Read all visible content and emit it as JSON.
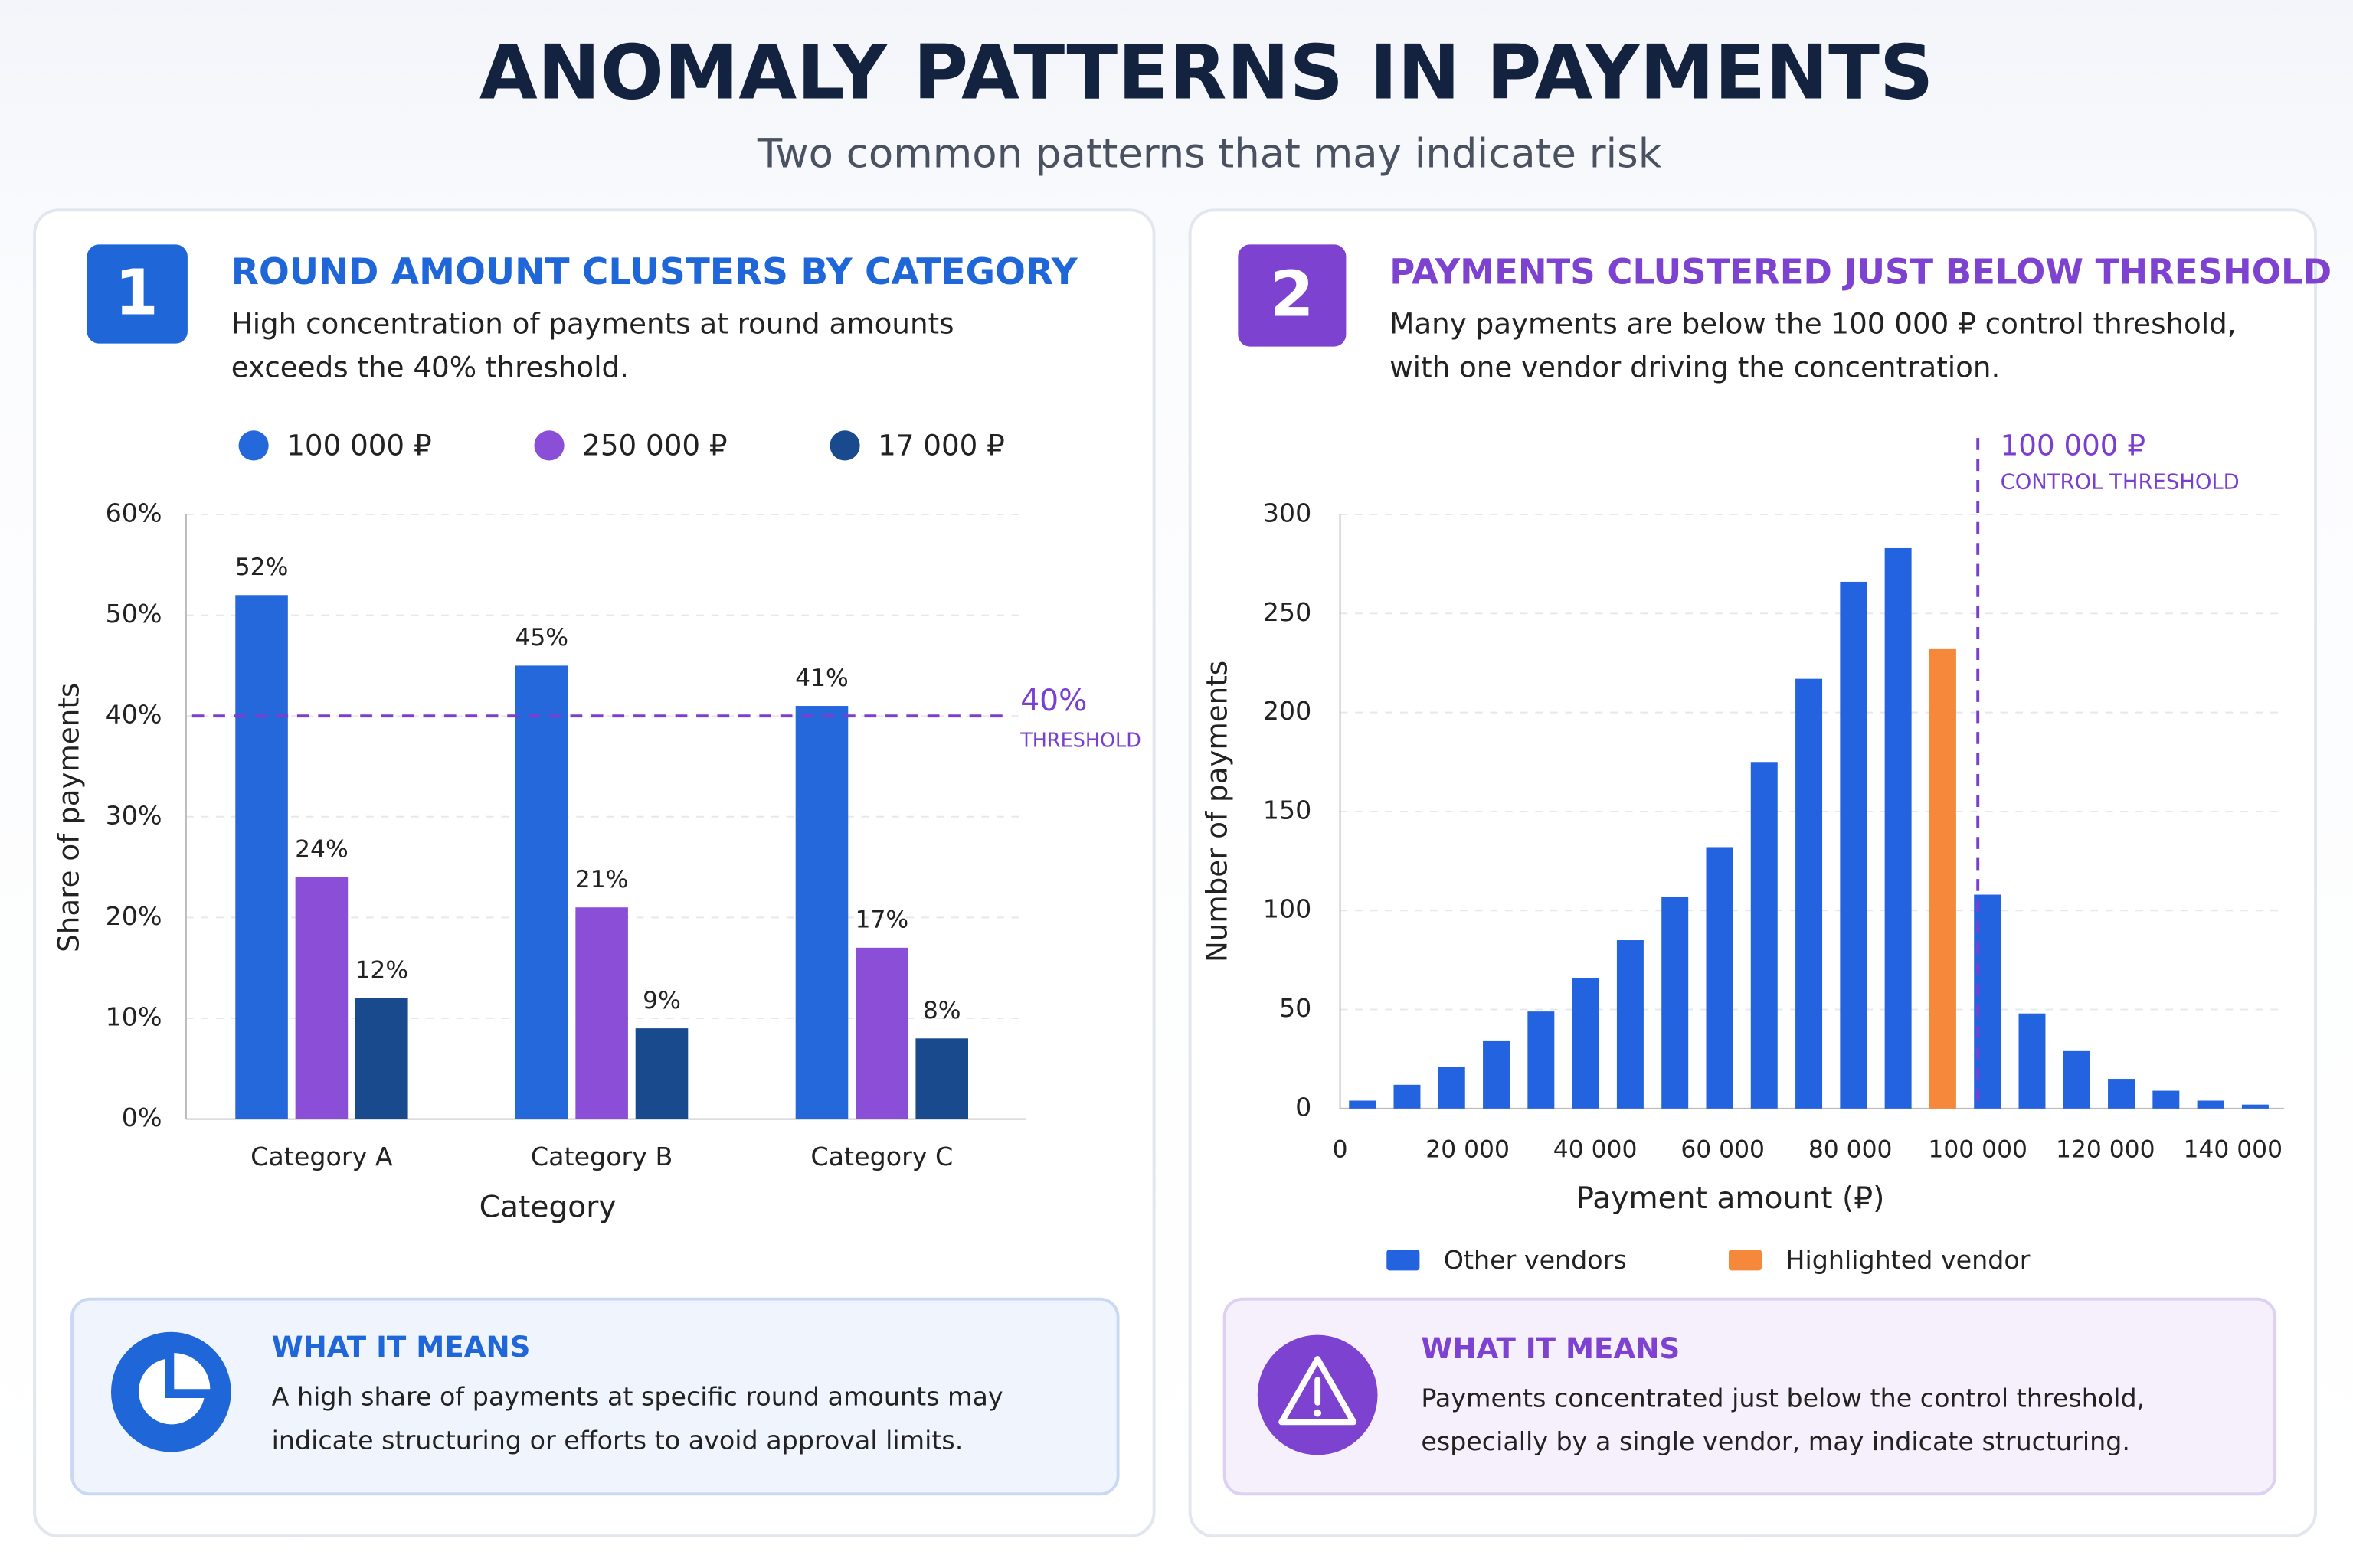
{
  "title": "ANOMALY PATTERNS IN PAYMENTS",
  "subtitle": "Two common patterns that may indicate risk",
  "panels": [
    {
      "number": "1",
      "title": "ROUND AMOUNT CLUSTERS BY CATEGORY",
      "description": [
        "High concentration of payments at round amounts",
        "exceeds the 40% threshold."
      ],
      "note_title": "WHAT IT MEANS",
      "note": [
        "A high share of payments at specific round amounts may",
        "indicate structuring or efforts to avoid approval limits."
      ]
    },
    {
      "number": "2",
      "title": "PAYMENTS CLUSTERED JUST BELOW THRESHOLD",
      "description": [
        "Many payments are below the 100 000 ₽ control threshold,",
        "with one vendor driving the concentration."
      ],
      "note_title": "WHAT IT MEANS",
      "note": [
        "Payments concentrated just below the control threshold,",
        "especially by a single vendor, may indicate structuring."
      ]
    }
  ],
  "chart_data": [
    {
      "type": "bar",
      "xlabel": "Category",
      "ylabel": "Share of payments",
      "categories": [
        "Category A",
        "Category B",
        "Category C"
      ],
      "series": [
        {
          "name": "100 000 ₽",
          "color": "#2468dc",
          "values": [
            52,
            45,
            41
          ],
          "value_labels": [
            "52%",
            "45%",
            "41%"
          ]
        },
        {
          "name": "250 000 ₽",
          "color": "#8a4fd6",
          "values": [
            24,
            21,
            17
          ],
          "value_labels": [
            "24%",
            "21%",
            "17%"
          ]
        },
        {
          "name": "17 000 ₽",
          "color": "#1a4a8e",
          "values": [
            12,
            9,
            8
          ],
          "value_labels": [
            "12%",
            "9%",
            "8%"
          ]
        }
      ],
      "ylim": [
        0,
        60
      ],
      "yticks": [
        {
          "value": 0,
          "label": "0%"
        },
        {
          "value": 10,
          "label": "10%"
        },
        {
          "value": 20,
          "label": "20%"
        },
        {
          "value": 30,
          "label": "30%"
        },
        {
          "value": 40,
          "label": "40%"
        },
        {
          "value": 50,
          "label": "50%"
        },
        {
          "value": 60,
          "label": "60%"
        }
      ],
      "grid": true,
      "threshold": {
        "value": 40,
        "label": "40%",
        "text": "THRESHOLD",
        "color": "#7b3fd0"
      }
    },
    {
      "type": "histogram",
      "xlabel": "Payment amount (₽)",
      "ylabel": "Number of payments",
      "bins": [
        0,
        7000,
        14000,
        21000,
        28000,
        35000,
        42000,
        49000,
        56000,
        63000,
        70000,
        77000,
        84000,
        91000,
        98000,
        105000,
        112000,
        119000,
        126000,
        133000,
        140000,
        147000
      ],
      "series": [
        {
          "name": "Other vendors",
          "color": "#2463e0",
          "values": [
            4,
            12,
            21,
            34,
            49,
            66,
            85,
            107,
            132,
            175,
            217,
            266,
            283,
            null,
            108,
            48,
            29,
            15,
            9,
            4,
            2
          ]
        },
        {
          "name": "Highlighted vendor",
          "color": "#f5883a",
          "values": [
            null,
            null,
            null,
            null,
            null,
            null,
            null,
            null,
            null,
            null,
            null,
            null,
            null,
            232,
            null,
            null,
            null,
            null,
            null,
            null,
            null
          ]
        }
      ],
      "xlim": [
        0,
        148000
      ],
      "xticks": [
        0,
        {
          "value": 20000,
          "label": "20 000"
        },
        {
          "value": 40000,
          "label": "40 000"
        },
        {
          "value": 60000,
          "label": "60 000"
        },
        {
          "value": 80000,
          "label": "80 000"
        },
        {
          "value": 100000,
          "label": "100 000"
        },
        {
          "value": 120000,
          "label": "120 000"
        },
        {
          "value": 140000,
          "label": "140 000"
        }
      ],
      "ylim": [
        0,
        300
      ],
      "yticks": [
        0,
        50,
        100,
        150,
        200,
        250,
        300
      ],
      "grid": true,
      "threshold": {
        "value": 100000,
        "label": "100 000 ₽",
        "text": "CONTROL THRESHOLD",
        "color": "#7b3fd0"
      }
    }
  ]
}
